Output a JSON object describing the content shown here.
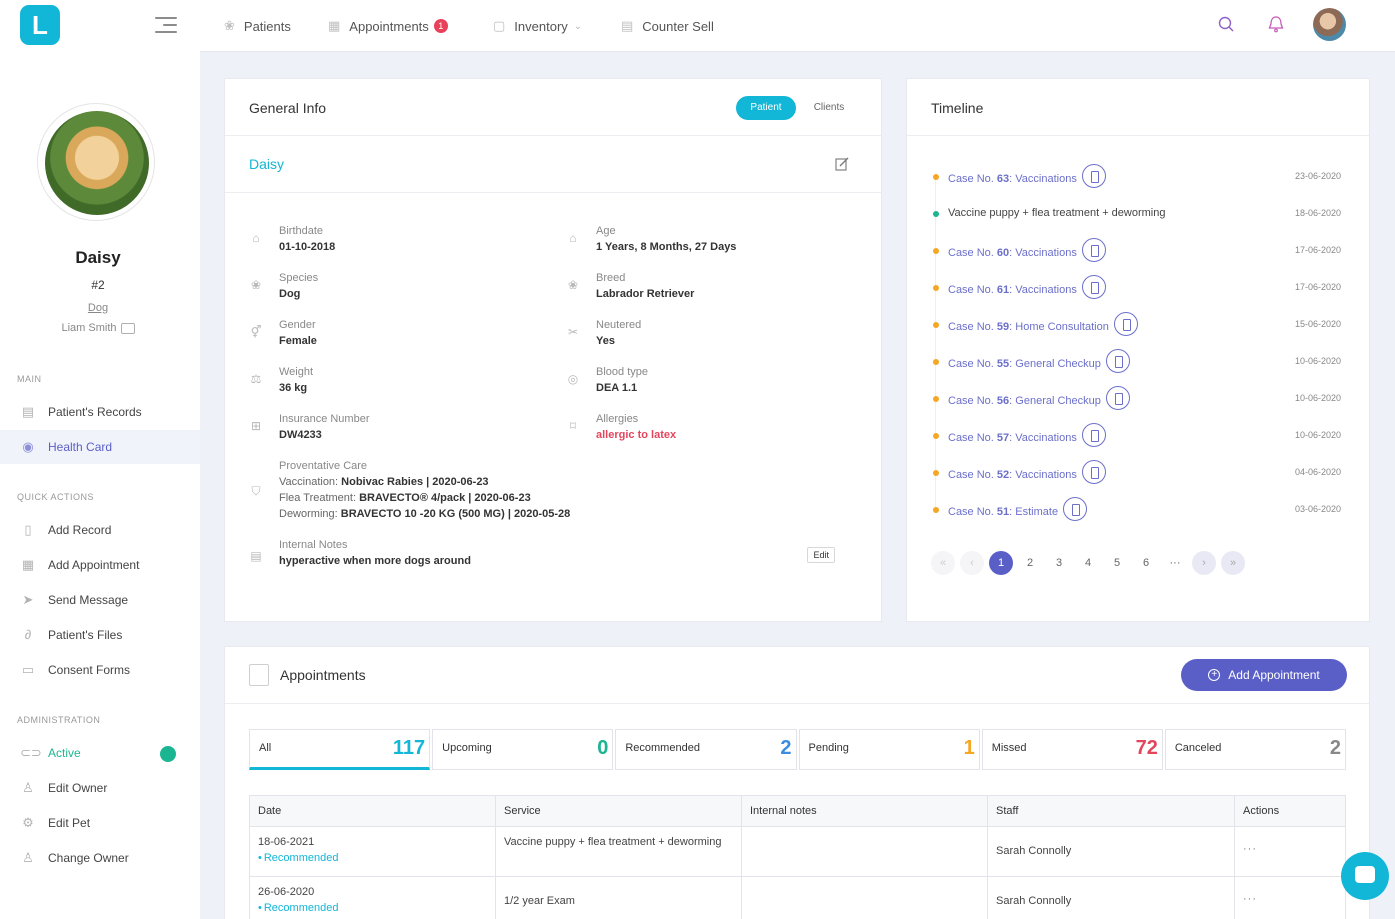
{
  "sidebar": {
    "logo_letter": "L",
    "pet": {
      "name": "Daisy",
      "id": "#2",
      "species": "Dog",
      "owner": "Liam Smith"
    },
    "main_label": "MAIN",
    "main_items": [
      {
        "label": "Patient's Records",
        "icon": "records-icon"
      },
      {
        "label": "Health Card",
        "icon": "eye-icon"
      }
    ],
    "quick_label": "QUICK ACTIONS",
    "quick_items": [
      {
        "label": "Add Record",
        "icon": "file-icon"
      },
      {
        "label": "Add Appointment",
        "icon": "calendar-icon"
      },
      {
        "label": "Send Message",
        "icon": "send-icon"
      },
      {
        "label": "Patient's Files",
        "icon": "paperclip-icon"
      },
      {
        "label": "Consent Forms",
        "icon": "document-icon"
      }
    ],
    "admin_label": "ADMINISTRATION",
    "admin_items": [
      {
        "label": "Active",
        "icon": "toggle-icon"
      },
      {
        "label": "Edit Owner",
        "icon": "user-icon"
      },
      {
        "label": "Edit Pet",
        "icon": "gear-icon"
      },
      {
        "label": "Change Owner",
        "icon": "swap-user-icon"
      }
    ]
  },
  "topbar": {
    "nav": [
      {
        "label": "Patients",
        "icon": "paw-icon"
      },
      {
        "label": "Appointments",
        "icon": "calendar-icon",
        "badge": "1"
      },
      {
        "label": "Inventory",
        "icon": "box-icon"
      },
      {
        "label": "Counter Sell",
        "icon": "register-icon"
      }
    ]
  },
  "general_info": {
    "title": "General Info",
    "toggle_patient": "Patient",
    "toggle_clients": "Clients",
    "patient_name": "Daisy",
    "fields": {
      "birthdate": {
        "label": "Birthdate",
        "value": "01-10-2018"
      },
      "age": {
        "label": "Age",
        "value": "1 Years, 8 Months, 27 Days"
      },
      "species": {
        "label": "Species",
        "value": "Dog"
      },
      "breed": {
        "label": "Breed",
        "value": "Labrador Retriever"
      },
      "gender": {
        "label": "Gender",
        "value": "Female"
      },
      "neutered": {
        "label": "Neutered",
        "value": "Yes"
      },
      "weight": {
        "label": "Weight",
        "value": "36 kg"
      },
      "blood_type": {
        "label": "Blood type",
        "value": "DEA 1.1"
      },
      "insurance": {
        "label": "Insurance Number",
        "value": "DW4233"
      },
      "allergies": {
        "label": "Allergies",
        "value": "allergic to latex"
      }
    },
    "preventative": {
      "label": "Proventative Care",
      "vaccination_label": "Vaccination:",
      "vaccination_value": "Nobivac Rabies | 2020-06-23",
      "flea_label": "Flea Treatment:",
      "flea_value": "BRAVECTO® 4/pack | 2020-06-23",
      "deworming_label": "Deworming:",
      "deworming_value": "BRAVECTO 10 -20 KG (500 MG) | 2020-05-28"
    },
    "notes": {
      "label": "Internal Notes",
      "value": "hyperactive when more dogs around",
      "edit": "Edit"
    }
  },
  "timeline": {
    "title": "Timeline",
    "items": [
      {
        "prefix": "Case No. ",
        "num": "63",
        "suffix": ": Vaccinations",
        "date": "23-06-2020",
        "color": "orange"
      },
      {
        "prefix": "",
        "num": "",
        "suffix": "Vaccine puppy + flea treatment + deworming",
        "date": "18-06-2020",
        "color": "green"
      },
      {
        "prefix": "Case No. ",
        "num": "60",
        "suffix": ": Vaccinations",
        "date": "17-06-2020",
        "color": "orange"
      },
      {
        "prefix": "Case No. ",
        "num": "61",
        "suffix": ": Vaccinations",
        "date": "17-06-2020",
        "color": "orange"
      },
      {
        "prefix": "Case No. ",
        "num": "59",
        "suffix": ": Home Consultation",
        "date": "15-06-2020",
        "color": "orange"
      },
      {
        "prefix": "Case No. ",
        "num": "55",
        "suffix": ": General Checkup",
        "date": "10-06-2020",
        "color": "orange"
      },
      {
        "prefix": "Case No. ",
        "num": "56",
        "suffix": ": General Checkup",
        "date": "10-06-2020",
        "color": "orange"
      },
      {
        "prefix": "Case No. ",
        "num": "57",
        "suffix": ": Vaccinations",
        "date": "10-06-2020",
        "color": "orange"
      },
      {
        "prefix": "Case No. ",
        "num": "52",
        "suffix": ": Vaccinations",
        "date": "04-06-2020",
        "color": "orange"
      },
      {
        "prefix": "Case No. ",
        "num": "51",
        "suffix": ": Estimate",
        "date": "03-06-2020",
        "color": "orange"
      }
    ],
    "pages": [
      "1",
      "2",
      "3",
      "4",
      "5",
      "6",
      "···"
    ]
  },
  "appointments": {
    "title": "Appointments",
    "add_label": "Add Appointment",
    "tabs": [
      {
        "label": "All",
        "count": "117",
        "color": "#12b6d6"
      },
      {
        "label": "Upcoming",
        "count": "0",
        "color": "#1cb592"
      },
      {
        "label": "Recommended",
        "count": "2",
        "color": "#3a8de0"
      },
      {
        "label": "Pending",
        "count": "1",
        "color": "#f5a623"
      },
      {
        "label": "Missed",
        "count": "72",
        "color": "#e3455d"
      },
      {
        "label": "Canceled",
        "count": "2",
        "color": "#888888"
      }
    ],
    "columns": [
      "Date",
      "Service",
      "Internal notes",
      "Staff",
      "Actions"
    ],
    "rows": [
      {
        "date": "18-06-2021",
        "status": "Recommended",
        "service": "Vaccine puppy + flea treatment + deworming",
        "notes": "",
        "staff": "Sarah Connolly",
        "actions": "···"
      },
      {
        "date": "26-06-2020",
        "status": "Recommended",
        "service": "1/2 year Exam",
        "notes": "",
        "staff": "Sarah Connolly",
        "actions": "···"
      }
    ]
  }
}
